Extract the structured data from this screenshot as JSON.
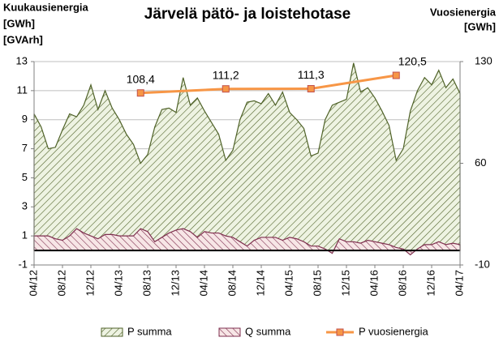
{
  "chart_data": {
    "type": "area",
    "title": "Järvelä pätö- ja loistehotase",
    "y_label": [
      "Kuukausienergia",
      "[GWh]",
      "[GVArh]"
    ],
    "y2_label": [
      "Vuosienergia",
      "[GWh]"
    ],
    "categories": [
      "04/12",
      null,
      null,
      null,
      "08/12",
      null,
      null,
      null,
      "12/12",
      null,
      null,
      null,
      "04/13",
      null,
      null,
      null,
      "08/13",
      null,
      null,
      null,
      "12/13",
      null,
      null,
      null,
      "04/14",
      null,
      null,
      null,
      "08/14",
      null,
      null,
      null,
      "12/14",
      null,
      null,
      null,
      "04/15",
      null,
      null,
      null,
      "08/15",
      null,
      null,
      null,
      "12/15",
      null,
      null,
      null,
      "04/16",
      null,
      null,
      null,
      "08/16",
      null,
      null,
      null,
      "12/16",
      null,
      null,
      null,
      "04/17"
    ],
    "ylim": [
      -1,
      13
    ],
    "yticks": [
      -1,
      1,
      3,
      5,
      7,
      9,
      11,
      13
    ],
    "y2lim": [
      -10,
      130
    ],
    "y2ticks": [
      -10,
      60,
      130
    ],
    "grid": true,
    "series": [
      {
        "name": "P summa",
        "type": "area",
        "color": "#4f6228",
        "fill": "#d7e4bd",
        "values": [
          9.4,
          8.5,
          7.0,
          7.1,
          8.3,
          9.4,
          9.2,
          10.0,
          11.4,
          9.7,
          11.0,
          9.8,
          9.0,
          8.0,
          7.3,
          6.0,
          6.6,
          8.5,
          9.7,
          9.8,
          9.5,
          11.9,
          10.0,
          10.5,
          9.6,
          8.8,
          8.0,
          6.2,
          6.9,
          9.0,
          10.2,
          10.3,
          10.1,
          10.8,
          10.0,
          10.9,
          9.5,
          9.0,
          8.4,
          6.5,
          6.7,
          9.0,
          10.0,
          10.2,
          10.4,
          12.9,
          10.9,
          11.2,
          10.5,
          9.6,
          8.6,
          6.2,
          7.0,
          9.6,
          11.0,
          11.9,
          11.4,
          12.4,
          11.2,
          11.8,
          10.8
        ]
      },
      {
        "name": "Q summa",
        "type": "area",
        "color": "#7f2f4f",
        "fill": "#f2dcdb",
        "values": [
          1.0,
          1.0,
          1.0,
          0.8,
          0.7,
          1.0,
          1.5,
          1.2,
          1.0,
          0.8,
          1.1,
          1.1,
          1.0,
          1.0,
          1.0,
          1.5,
          1.3,
          0.6,
          0.9,
          1.2,
          1.4,
          1.5,
          1.3,
          0.9,
          1.3,
          1.2,
          1.2,
          1.0,
          0.9,
          0.6,
          0.3,
          0.7,
          0.9,
          0.9,
          0.9,
          0.7,
          0.9,
          0.8,
          0.6,
          0.3,
          0.3,
          0.1,
          -0.2,
          0.8,
          0.6,
          0.6,
          0.5,
          0.7,
          0.6,
          0.5,
          0.4,
          0.2,
          0.1,
          -0.3,
          0.1,
          0.4,
          0.4,
          0.6,
          0.4,
          0.5,
          0.4
        ]
      },
      {
        "name": "P vuosienergia",
        "type": "line",
        "axis": "y2",
        "color": "#f79646",
        "marker_edge": "#c0504d",
        "x": [
          "07/13",
          "07/14",
          "07/15",
          "07/16"
        ],
        "values": [
          108.4,
          111.2,
          111.3,
          120.5
        ],
        "value_labels": [
          "108,4",
          "111,2",
          "111,3",
          "120,5"
        ]
      }
    ]
  }
}
